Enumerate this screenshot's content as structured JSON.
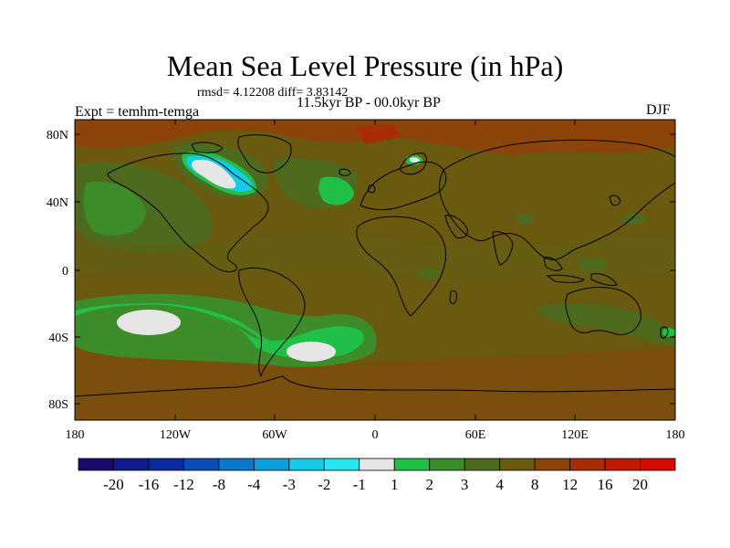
{
  "title": "Mean Sea Level Pressure (in hPa)",
  "rmsd_line": "rmsd= 4.12208 diff= 3.83142",
  "period": "11.5kyr BP - 00.0kyr BP",
  "experiment": "Expt = temhm-temga",
  "season": "DJF",
  "lat_ticks": [
    "80N",
    "40N",
    "0",
    "40S",
    "80S"
  ],
  "lon_ticks": [
    "180",
    "120W",
    "60W",
    "0",
    "60E",
    "120E",
    "180"
  ],
  "colorbar": {
    "labels": [
      "-20",
      "-16",
      "-12",
      "-8",
      "-4",
      "-3",
      "-2",
      "-1",
      "1",
      "2",
      "3",
      "4",
      "8",
      "12",
      "16",
      "20"
    ],
    "colors": [
      "#1a0a6e",
      "#101c8c",
      "#0a2aa0",
      "#0a4cb8",
      "#0a78cc",
      "#0aa0dc",
      "#14cce6",
      "#28e6ee",
      "#e6e6e6",
      "#20c048",
      "#3c8c2a",
      "#4e6a1e",
      "#6a5a10",
      "#8c4408",
      "#a82c04",
      "#c01a02",
      "#d80a00"
    ]
  },
  "map_colors": {
    "ocean_base": "#6a5a10",
    "green_light": "#20c048",
    "green_mid": "#3c8c2a",
    "green_dark": "#4e6a1e",
    "brown": "#8c4408",
    "white": "#e6e6e6",
    "cyan": "#14cce6",
    "red": "#a82c04"
  }
}
